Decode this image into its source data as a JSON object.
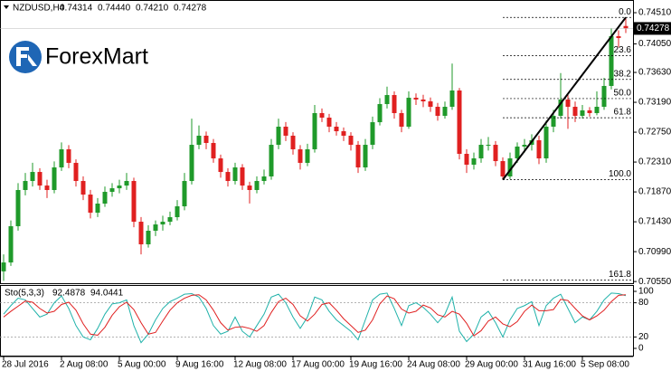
{
  "chart_data": {
    "type": "candlestick",
    "title": "NZDUSD,H4",
    "header_labels": [
      "0.74314",
      "0.74440",
      "0.74210",
      "0.74278"
    ],
    "watermark": "ForexMart",
    "up_color": "#1f9a2a",
    "down_color": "#e02020",
    "open": [
      0.707,
      0.70831,
      0.71365,
      0.71898,
      0.72031,
      0.72164,
      0.71964,
      0.71898,
      0.72231,
      0.72498,
      0.72298,
      0.72031,
      0.71831,
      0.71564,
      0.71698,
      0.71871,
      0.71924,
      0.71964,
      0.72031,
      0.71431,
      0.71098,
      0.71298,
      0.71391,
      0.71431,
      0.71498,
      0.71658,
      0.72031,
      0.72564,
      0.72698,
      0.72591,
      0.72364,
      0.72164,
      0.72031,
      0.72231,
      0.71964,
      0.71898,
      0.72031,
      0.72098,
      0.72564,
      0.72831,
      0.72698,
      0.72498,
      0.72298,
      0.72498,
      0.73031,
      0.72964,
      0.72831,
      0.72764,
      0.72698,
      0.72564,
      0.72231,
      0.72564,
      0.72897,
      0.73164,
      0.73297,
      0.73031,
      0.72831,
      0.73257,
      0.73231,
      0.73204,
      0.73124,
      0.72991,
      0.73124,
      0.73364,
      0.72431,
      0.72271,
      0.72364,
      0.72564,
      0.72564,
      0.72324,
      0.72098,
      0.72364,
      0.72538,
      0.72564,
      0.72631,
      0.72364,
      0.72831,
      0.72991,
      0.73231,
      0.73124,
      0.72991,
      0.73071,
      0.73031,
      0.73124,
      0.73431,
      0.74164,
      0.74314
    ],
    "high": [
      0.7095,
      0.7145,
      0.72,
      0.7215,
      0.723,
      0.7222,
      0.7205,
      0.7232,
      0.726,
      0.7256,
      0.7235,
      0.721,
      0.719,
      0.7178,
      0.7195,
      0.72,
      0.7205,
      0.7215,
      0.7208,
      0.715,
      0.7138,
      0.7145,
      0.7152,
      0.7158,
      0.7175,
      0.7215,
      0.7295,
      0.7285,
      0.7276,
      0.7265,
      0.7242,
      0.7222,
      0.723,
      0.7228,
      0.7202,
      0.721,
      0.722,
      0.7265,
      0.7295,
      0.729,
      0.7275,
      0.7256,
      0.7258,
      0.7315,
      0.731,
      0.7302,
      0.729,
      0.7282,
      0.7275,
      0.7262,
      0.7265,
      0.7298,
      0.7325,
      0.7342,
      0.7335,
      0.7308,
      0.7335,
      0.7332,
      0.733,
      0.7326,
      0.7318,
      0.732,
      0.7376,
      0.734,
      0.725,
      0.7245,
      0.7265,
      0.7268,
      0.7262,
      0.7238,
      0.7245,
      0.726,
      0.7265,
      0.7272,
      0.727,
      0.7292,
      0.7308,
      0.7362,
      0.733,
      0.732,
      0.7315,
      0.7312,
      0.7335,
      0.7355,
      0.7428,
      0.7425,
      0.7444
    ],
    "low": [
      0.7056,
      0.7078,
      0.713,
      0.7182,
      0.7195,
      0.719,
      0.7178,
      0.7185,
      0.7218,
      0.7222,
      0.7195,
      0.7175,
      0.7148,
      0.715,
      0.7165,
      0.718,
      0.7185,
      0.719,
      0.7135,
      0.7095,
      0.7105,
      0.7122,
      0.713,
      0.7138,
      0.7145,
      0.716,
      0.7198,
      0.725,
      0.725,
      0.723,
      0.7208,
      0.7195,
      0.7198,
      0.719,
      0.717,
      0.7185,
      0.7198,
      0.7205,
      0.725,
      0.7262,
      0.7242,
      0.722,
      0.7225,
      0.7245,
      0.729,
      0.7275,
      0.727,
      0.7262,
      0.7248,
      0.7215,
      0.7218,
      0.725,
      0.7285,
      0.731,
      0.7295,
      0.7275,
      0.728,
      0.7315,
      0.7312,
      0.7305,
      0.7292,
      0.7295,
      0.7308,
      0.7235,
      0.7215,
      0.722,
      0.723,
      0.7248,
      0.7225,
      0.7205,
      0.7206,
      0.723,
      0.7245,
      0.7248,
      0.7228,
      0.723,
      0.7275,
      0.7295,
      0.728,
      0.729,
      0.7295,
      0.7298,
      0.73,
      0.7308,
      0.7338,
      0.74,
      0.7421
    ],
    "close": [
      0.70831,
      0.71365,
      0.71898,
      0.72031,
      0.72164,
      0.71964,
      0.71898,
      0.72231,
      0.72498,
      0.72298,
      0.72031,
      0.71831,
      0.71564,
      0.71698,
      0.71871,
      0.71924,
      0.71964,
      0.72031,
      0.71431,
      0.71098,
      0.71298,
      0.71391,
      0.71431,
      0.71498,
      0.71658,
      0.72031,
      0.72564,
      0.72698,
      0.72591,
      0.72364,
      0.72164,
      0.72031,
      0.72231,
      0.71964,
      0.71898,
      0.72031,
      0.72098,
      0.72564,
      0.72831,
      0.72698,
      0.72498,
      0.72298,
      0.72498,
      0.73031,
      0.72964,
      0.72831,
      0.72764,
      0.72698,
      0.72564,
      0.72231,
      0.72564,
      0.72897,
      0.73164,
      0.73297,
      0.73031,
      0.72831,
      0.73257,
      0.73231,
      0.73204,
      0.73124,
      0.72991,
      0.73124,
      0.73364,
      0.72431,
      0.72271,
      0.72364,
      0.72564,
      0.72564,
      0.72324,
      0.72098,
      0.72364,
      0.72538,
      0.72564,
      0.72631,
      0.72364,
      0.72831,
      0.72991,
      0.73231,
      0.73124,
      0.72991,
      0.73071,
      0.73031,
      0.73124,
      0.73431,
      0.74164,
      0.74137,
      0.74278
    ],
    "ylim": [
      0.70525,
      0.74697
    ],
    "yticks": [
      {
        "value": 0.7451,
        "label": "0.74510"
      },
      {
        "value": 0.7405,
        "label": "0.74050"
      },
      {
        "value": 0.7363,
        "label": "0.73630"
      },
      {
        "value": 0.7319,
        "label": "0.73190"
      },
      {
        "value": 0.7275,
        "label": "0.72750"
      },
      {
        "value": 0.7231,
        "label": "0.72310"
      },
      {
        "value": 0.7187,
        "label": "0.71870"
      },
      {
        "value": 0.7143,
        "label": "0.71430"
      },
      {
        "value": 0.7099,
        "label": "0.70990"
      },
      {
        "value": 0.7055,
        "label": "0.70550"
      }
    ],
    "xticks": [
      {
        "value": 0,
        "label": "28 Jul 2016"
      },
      {
        "value": 8,
        "label": "2 Aug 08:00"
      },
      {
        "value": 16,
        "label": "5 Aug 00:00"
      },
      {
        "value": 24,
        "label": "9 Aug 16:00"
      },
      {
        "value": 32,
        "label": "12 Aug 08:00"
      },
      {
        "value": 40,
        "label": "17 Aug 00:00"
      },
      {
        "value": 48,
        "label": "19 Aug 16:00"
      },
      {
        "value": 56,
        "label": "24 Aug 08:00"
      },
      {
        "value": 64,
        "label": "29 Aug 00:00"
      },
      {
        "value": 72,
        "label": "31 Aug 16:00"
      },
      {
        "value": 80,
        "label": "5 Sep 08:00"
      }
    ],
    "fibonacci": {
      "high": 0.7444,
      "low": 0.7205,
      "start_index": 69,
      "end_index": 86,
      "color": "#000000",
      "levels": [
        {
          "value": 0,
          "label": "0.0"
        },
        23.6,
        38.2,
        {
          "value": 50,
          "label": "50.0"
        },
        61.8,
        {
          "value": 100,
          "label": "100.0"
        },
        161.8
      ]
    },
    "indicator": {
      "title": "Sto(5,3,3)",
      "ylim": [
        -12.7,
        111.1
      ],
      "yticks": [
        0,
        20,
        80,
        100
      ],
      "levels": [
        20,
        80
      ],
      "series": [
        {
          "name": "Main",
          "color": "#20b2aa",
          "values": [
            60,
            75,
            88,
            85,
            70,
            55,
            60,
            80,
            92,
            70,
            40,
            20,
            15,
            35,
            60,
            78,
            80,
            85,
            40,
            10,
            25,
            50,
            70,
            82,
            88,
            95,
            96,
            90,
            70,
            40,
            25,
            30,
            55,
            30,
            20,
            40,
            60,
            90,
            95,
            80,
            55,
            35,
            55,
            90,
            85,
            65,
            50,
            40,
            30,
            15,
            50,
            85,
            95,
            97,
            70,
            40,
            75,
            80,
            72,
            60,
            45,
            60,
            90,
            30,
            12,
            25,
            55,
            65,
            45,
            20,
            50,
            70,
            75,
            82,
            40,
            75,
            88,
            95,
            70,
            45,
            55,
            50,
            65,
            85,
            97,
            96,
            92.4878
          ]
        },
        {
          "name": "Signal",
          "color": "#e02020",
          "values": [
            55,
            65,
            74,
            83,
            81,
            70,
            62,
            65,
            77,
            81,
            67,
            43,
            25,
            23,
            37,
            58,
            73,
            81,
            68,
            45,
            25,
            28,
            48,
            67,
            80,
            88,
            93,
            94,
            85,
            67,
            45,
            32,
            37,
            38,
            35,
            30,
            40,
            63,
            82,
            88,
            77,
            57,
            48,
            60,
            77,
            80,
            67,
            52,
            40,
            28,
            32,
            50,
            78,
            92,
            87,
            69,
            62,
            65,
            76,
            71,
            59,
            55,
            65,
            60,
            44,
            22,
            31,
            48,
            55,
            43,
            38,
            47,
            65,
            76,
            66,
            66,
            68,
            86,
            84,
            70,
            57,
            50,
            57,
            67,
            82,
            93,
            94.0441
          ]
        }
      ]
    }
  }
}
